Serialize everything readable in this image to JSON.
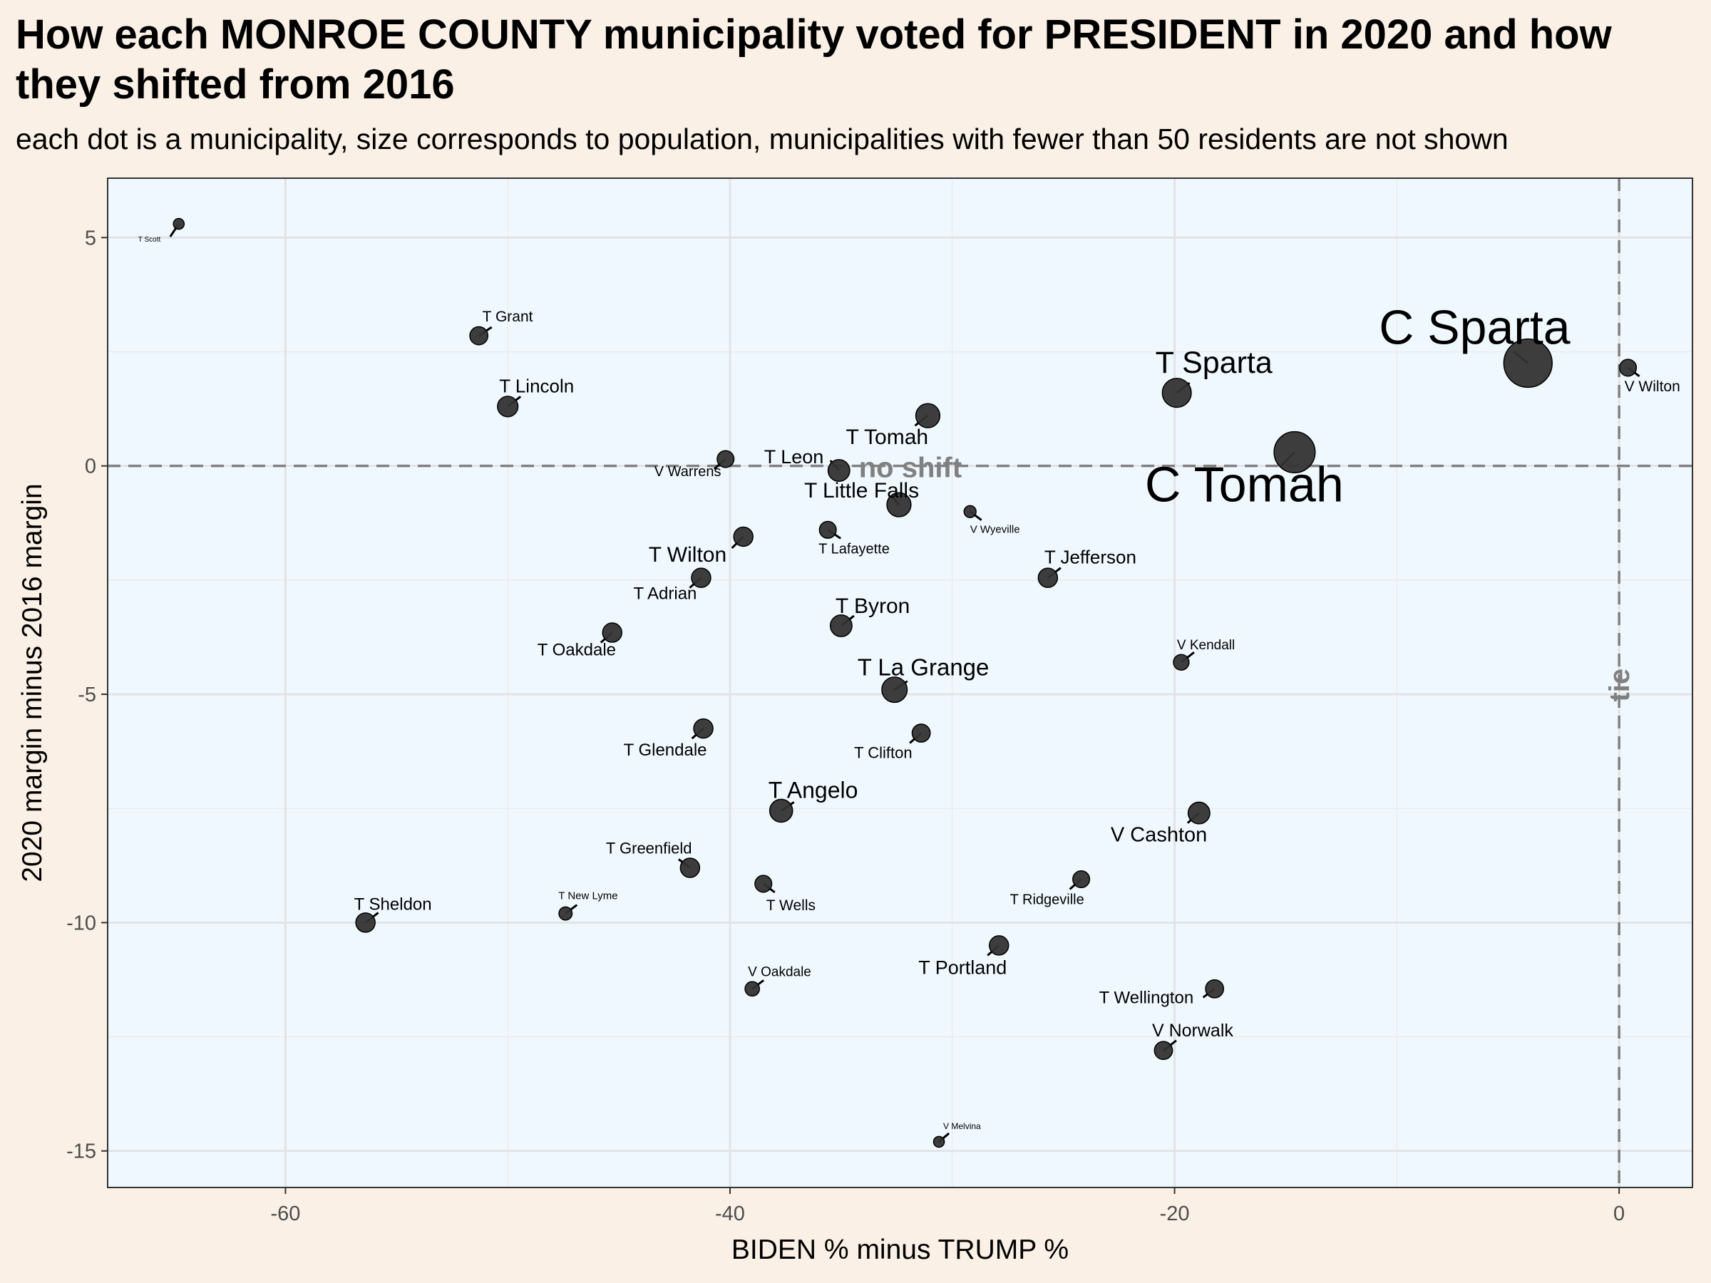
{
  "title": "How each MONROE COUNTY municipality voted for PRESIDENT in 2020 and how they shifted from 2016",
  "subtitle": "each dot is a municipality, size corresponds to population, municipalities with fewer than 50 residents are not shown",
  "chart_data": {
    "type": "scatter",
    "xlabel": "BIDEN % minus TRUMP %",
    "ylabel": "2020 margin minus 2016 margin",
    "xlim": [
      -68,
      3.3
    ],
    "ylim": [
      -15.8,
      6.3
    ],
    "xticks": [
      -60,
      -40,
      -20,
      0
    ],
    "yticks": [
      5,
      0,
      -5,
      -10,
      -15
    ],
    "xtick_labels": [
      "-60",
      "-40",
      "-20",
      "0"
    ],
    "ytick_labels": [
      "5",
      "0",
      "-5",
      "-10",
      "-15"
    ],
    "grid": true,
    "colors": {
      "panel": "#f0f8ff",
      "point": "#333333",
      "reference": "#808080"
    },
    "reference_lines": [
      {
        "axis": "y",
        "value": 0,
        "label": "no shift"
      },
      {
        "axis": "x",
        "value": 0,
        "label": "tie"
      }
    ],
    "points": [
      {
        "name": "T Scott",
        "x": -64.8,
        "y": 5.3,
        "size": 0.15
      },
      {
        "name": "T Grant",
        "x": -51.3,
        "y": 2.85,
        "size": 0.45
      },
      {
        "name": "T Lincoln",
        "x": -50.0,
        "y": 1.3,
        "size": 0.55
      },
      {
        "name": "V Warrens",
        "x": -40.2,
        "y": 0.15,
        "size": 0.4
      },
      {
        "name": "T Leon",
        "x": -35.1,
        "y": -0.1,
        "size": 0.6
      },
      {
        "name": "T Tomah",
        "x": -31.1,
        "y": 1.1,
        "size": 0.7
      },
      {
        "name": "T Little Falls",
        "x": -32.4,
        "y": -0.85,
        "size": 0.7
      },
      {
        "name": "V Wyeville",
        "x": -29.2,
        "y": -1.0,
        "size": 0.2
      },
      {
        "name": "T Wilton",
        "x": -39.4,
        "y": -1.55,
        "size": 0.5
      },
      {
        "name": "T Lafayette",
        "x": -35.6,
        "y": -1.4,
        "size": 0.4
      },
      {
        "name": "T Adrian",
        "x": -41.3,
        "y": -2.45,
        "size": 0.5
      },
      {
        "name": "T Jefferson",
        "x": -25.7,
        "y": -2.45,
        "size": 0.5
      },
      {
        "name": "T Oakdale",
        "x": -45.3,
        "y": -3.65,
        "size": 0.5
      },
      {
        "name": "T Byron",
        "x": -35.0,
        "y": -3.5,
        "size": 0.6
      },
      {
        "name": "V Kendall",
        "x": -19.7,
        "y": -4.3,
        "size": 0.35
      },
      {
        "name": "T La Grange",
        "x": -32.6,
        "y": -4.9,
        "size": 0.75
      },
      {
        "name": "T Glendale",
        "x": -41.2,
        "y": -5.75,
        "size": 0.5
      },
      {
        "name": "T Clifton",
        "x": -31.4,
        "y": -5.85,
        "size": 0.45
      },
      {
        "name": "T Angelo",
        "x": -37.7,
        "y": -7.55,
        "size": 0.65
      },
      {
        "name": "V Cashton",
        "x": -18.9,
        "y": -7.6,
        "size": 0.6
      },
      {
        "name": "T Greenfield",
        "x": -41.8,
        "y": -8.8,
        "size": 0.5
      },
      {
        "name": "T Wells",
        "x": -38.5,
        "y": -9.15,
        "size": 0.4
      },
      {
        "name": "T Ridgeville",
        "x": -24.2,
        "y": -9.05,
        "size": 0.4
      },
      {
        "name": "T Sheldon",
        "x": -56.4,
        "y": -10.0,
        "size": 0.5
      },
      {
        "name": "T New Lyme",
        "x": -47.4,
        "y": -9.8,
        "size": 0.25
      },
      {
        "name": "T Portland",
        "x": -27.9,
        "y": -10.5,
        "size": 0.5
      },
      {
        "name": "V Oakdale",
        "x": -39.0,
        "y": -11.45,
        "size": 0.3
      },
      {
        "name": "T Wellington",
        "x": -18.2,
        "y": -11.45,
        "size": 0.45
      },
      {
        "name": "V Norwalk",
        "x": -20.5,
        "y": -12.8,
        "size": 0.45
      },
      {
        "name": "V Melvina",
        "x": -30.6,
        "y": -14.8,
        "size": 0.15
      },
      {
        "name": "T Sparta",
        "x": -19.9,
        "y": 1.6,
        "size": 0.9
      },
      {
        "name": "C Tomah",
        "x": -14.6,
        "y": 0.3,
        "size": 1.4
      },
      {
        "name": "C Sparta",
        "x": -4.1,
        "y": 2.25,
        "size": 1.7
      },
      {
        "name": "V Wilton",
        "x": 0.4,
        "y": 2.15,
        "size": 0.4
      }
    ]
  }
}
